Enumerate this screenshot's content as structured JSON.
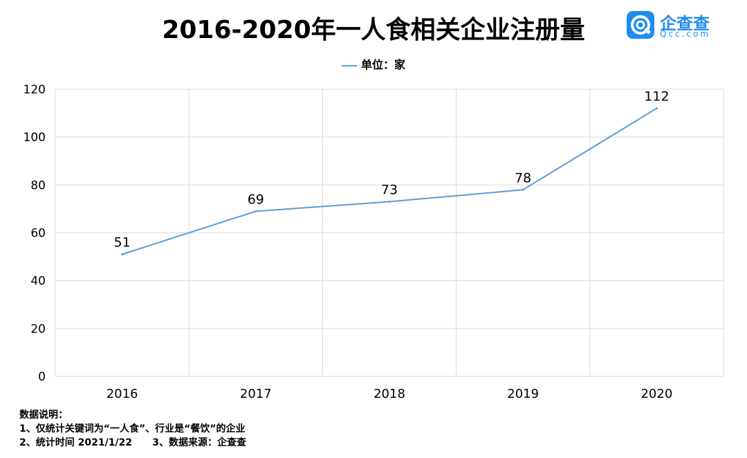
{
  "title": "2016-2020年一人食相关企业注册量",
  "logo": {
    "name": "企查查",
    "sub": "Qcc.com",
    "icon": "qcc-logo-icon"
  },
  "legend_label": "单位：家",
  "colors": {
    "line": "#5b9bd5",
    "grid": "#d9d9d9"
  },
  "chart_data": {
    "type": "line",
    "categories": [
      "2016",
      "2017",
      "2018",
      "2019",
      "2020"
    ],
    "series": [
      {
        "name": "单位：家",
        "values": [
          51,
          69,
          73,
          78,
          112
        ]
      }
    ],
    "ylim": [
      0,
      120
    ],
    "yticks": [
      "0",
      "20",
      "40",
      "60",
      "80",
      "100",
      "120"
    ],
    "grid": true,
    "legend": "top-center",
    "data_labels": true
  },
  "notes": {
    "heading": "数据说明：",
    "line1": "1、仅统计关键词为“一人食”、行业是“餐饮”的企业",
    "line2": "2、统计时间 2021/1/22      3、数据来源：企查查"
  }
}
